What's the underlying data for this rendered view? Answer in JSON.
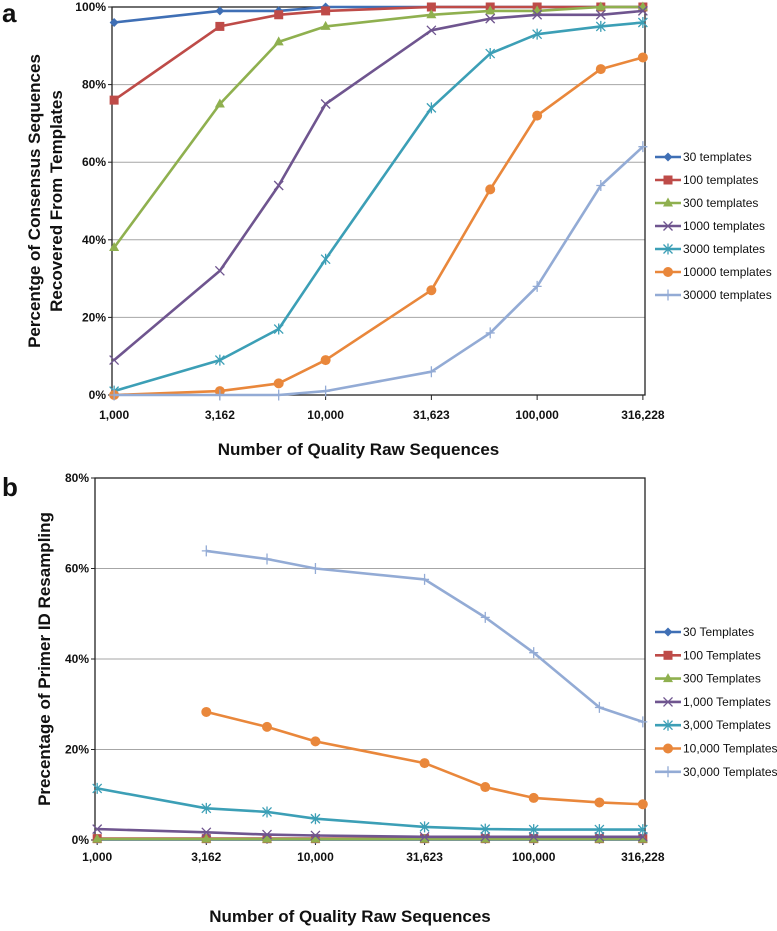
{
  "chart_data": [
    {
      "panel": "a",
      "type": "line",
      "xscale": "log",
      "xlabel": "Number of Quality Raw Sequences",
      "ylabel": [
        "Percentge of Consensus Sequences",
        "Recovered From Templates"
      ],
      "ylim": [
        0,
        100
      ],
      "yticks": [
        0,
        20,
        40,
        60,
        80,
        100
      ],
      "ytick_labels": [
        "0%",
        "20%",
        "40%",
        "60%",
        "80%",
        "100%"
      ],
      "xticks": [
        1000,
        3162,
        10000,
        31623,
        100000,
        316228
      ],
      "xtick_labels": [
        "1,000",
        "3,162",
        "10,000",
        "31,623",
        "100,000",
        "316,228"
      ],
      "grid": "horizontal",
      "legend_position": "right",
      "x": [
        1000,
        3162,
        6000,
        10000,
        31623,
        60000,
        100000,
        200000,
        316228
      ],
      "series": [
        {
          "name": "30 templates",
          "color": "#3f6fb5",
          "marker": "diamond",
          "values": [
            96,
            99,
            99,
            100,
            100,
            100,
            100,
            100,
            100
          ]
        },
        {
          "name": "100 templates",
          "color": "#be4b48",
          "marker": "square",
          "values": [
            76,
            95,
            98,
            99,
            100,
            100,
            100,
            100,
            100
          ]
        },
        {
          "name": "300 templates",
          "color": "#8fb04f",
          "marker": "triangle",
          "values": [
            38,
            75,
            91,
            95,
            98,
            99,
            99,
            100,
            100
          ]
        },
        {
          "name": "1000 templates",
          "color": "#6f558f",
          "marker": "x",
          "values": [
            9,
            32,
            54,
            75,
            94,
            97,
            98,
            98,
            99
          ]
        },
        {
          "name": "3000 templates",
          "color": "#3c9fb6",
          "marker": "asterisk",
          "values": [
            1,
            9,
            17,
            35,
            74,
            88,
            93,
            95,
            96
          ]
        },
        {
          "name": "10000 templates",
          "color": "#e9873b",
          "marker": "circle",
          "values": [
            0,
            1,
            3,
            9,
            27,
            53,
            72,
            84,
            87
          ]
        },
        {
          "name": "30000 templates",
          "color": "#93abd5",
          "marker": "plus",
          "values": [
            0,
            0,
            0,
            1,
            6,
            16,
            28,
            54,
            64
          ]
        }
      ]
    },
    {
      "panel": "b",
      "type": "line",
      "xscale": "log",
      "xlabel": "Number of Quality Raw Sequences",
      "ylabel": [
        "Precentage of Primer ID Resampling"
      ],
      "ylim": [
        0,
        80
      ],
      "yticks": [
        0,
        20,
        40,
        60,
        80
      ],
      "ytick_labels": [
        "0%",
        "20%",
        "40%",
        "60%",
        "80%"
      ],
      "xticks": [
        1000,
        3162,
        10000,
        31623,
        100000,
        316228
      ],
      "xtick_labels": [
        "1,000",
        "3,162",
        "10,000",
        "31,623",
        "100,000",
        "316,228"
      ],
      "grid": "horizontal",
      "legend_position": "right",
      "x": [
        1000,
        3162,
        6000,
        10000,
        31623,
        60000,
        100000,
        200000,
        316228
      ],
      "series": [
        {
          "name": "30 Templates",
          "color": "#3f6fb5",
          "marker": "diamond",
          "values": [
            0.1,
            0.1,
            0.1,
            0.1,
            0.1,
            0.1,
            0.1,
            0.1,
            0.1
          ]
        },
        {
          "name": "100 Templates",
          "color": "#be4b48",
          "marker": "square",
          "values": [
            0.3,
            0.3,
            0.3,
            0.3,
            0.3,
            0.3,
            0.3,
            0.3,
            0.3
          ]
        },
        {
          "name": "300 Templates",
          "color": "#8fb04f",
          "marker": "triangle",
          "values": [
            0.2,
            0.2,
            0.2,
            0.2,
            0.2,
            0.2,
            0.2,
            0.2,
            0.2
          ]
        },
        {
          "name": "1,000 Templates",
          "color": "#6f558f",
          "marker": "x",
          "values": [
            2.4,
            1.7,
            1.2,
            1.0,
            0.7,
            0.7,
            0.7,
            0.7,
            0.7
          ]
        },
        {
          "name": "3,000 Templates",
          "color": "#3c9fb6",
          "marker": "asterisk",
          "values": [
            11.4,
            7.0,
            6.2,
            4.7,
            2.9,
            2.4,
            2.3,
            2.3,
            2.3
          ]
        },
        {
          "name": "10,000 Templates",
          "color": "#e9873b",
          "marker": "circle",
          "values": [
            null,
            28.3,
            25.0,
            21.8,
            17.0,
            11.7,
            9.3,
            8.3,
            7.9
          ]
        },
        {
          "name": "30,000 Templates",
          "color": "#93abd5",
          "marker": "plus",
          "values": [
            null,
            63.9,
            62.1,
            60.0,
            57.6,
            49.2,
            41.4,
            29.3,
            26.1
          ]
        }
      ]
    }
  ]
}
